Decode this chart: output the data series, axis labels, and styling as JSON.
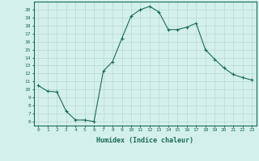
{
  "x": [
    0,
    1,
    2,
    3,
    4,
    5,
    6,
    7,
    8,
    9,
    10,
    11,
    12,
    13,
    14,
    15,
    16,
    17,
    18,
    19,
    20,
    21,
    22,
    23
  ],
  "y": [
    10.5,
    9.8,
    9.7,
    7.3,
    6.2,
    6.2,
    6.0,
    12.3,
    13.5,
    16.4,
    19.2,
    20.0,
    20.4,
    19.7,
    17.5,
    17.5,
    17.8,
    18.3,
    15.0,
    13.8,
    12.7,
    11.9,
    11.5,
    11.2
  ],
  "line_color": "#1a6b5a",
  "marker": "+",
  "bg_color": "#d4f0ec",
  "grid_color": "#b8d8d4",
  "xlabel": "Humidex (Indice chaleur)",
  "ylabel_ticks": [
    6,
    7,
    8,
    9,
    10,
    11,
    12,
    13,
    14,
    15,
    16,
    17,
    18,
    19,
    20
  ],
  "xlim": [
    -0.5,
    23.5
  ],
  "ylim": [
    5.5,
    21.0
  ],
  "tick_color": "#1a6b5a",
  "axis_color": "#1a6b5a"
}
